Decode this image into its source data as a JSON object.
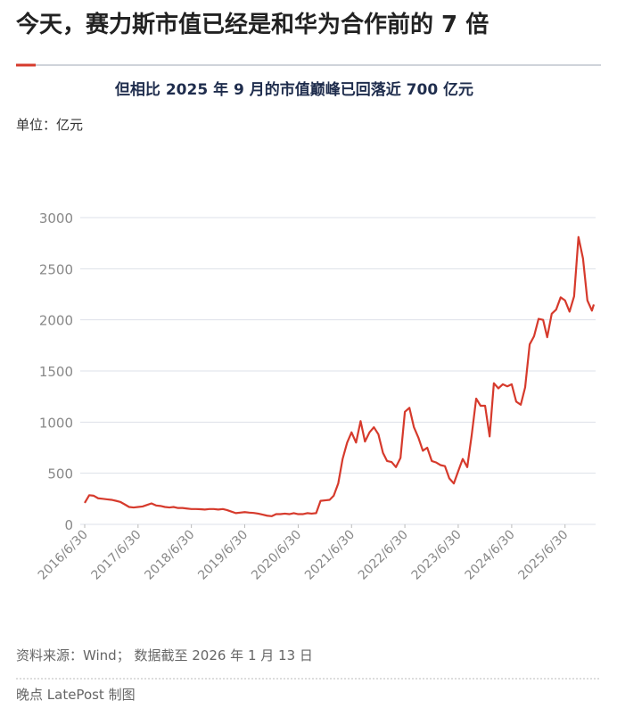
{
  "chart_data": {
    "type": "line",
    "title": "今天，赛力斯市值已经是和华为合作前的 7 倍",
    "subtitle": "但相比 2025 年 9 月的市值巅峰已回落近 700 亿元",
    "unit_label": "单位：亿元",
    "source": "资料来源：Wind； 数据截至 2026 年 1 月 13 日",
    "credit": "晚点 LatePost 制图",
    "color": "#d63a2c",
    "grid": true,
    "ylim": [
      0,
      3000
    ],
    "yticks": [
      0,
      500,
      1000,
      1500,
      2000,
      2500,
      3000
    ],
    "xlim": [
      "2016/6/30",
      "2026/1/13"
    ],
    "xticks": [
      "2016/6/30",
      "2017/6/30",
      "2018/6/30",
      "2019/6/30",
      "2020/6/30",
      "2021/6/30",
      "2022/6/30",
      "2023/6/30",
      "2024/6/30",
      "2025/6/30"
    ],
    "x": [
      "2016/6/30",
      "2016/7/31",
      "2016/8/31",
      "2016/9/30",
      "2016/10/31",
      "2016/11/30",
      "2016/12/31",
      "2017/1/31",
      "2017/2/28",
      "2017/3/31",
      "2017/4/30",
      "2017/5/31",
      "2017/6/30",
      "2017/7/31",
      "2017/8/31",
      "2017/9/30",
      "2017/10/31",
      "2017/11/30",
      "2017/12/31",
      "2018/1/31",
      "2018/2/28",
      "2018/3/31",
      "2018/4/30",
      "2018/5/31",
      "2018/6/30",
      "2018/7/31",
      "2018/8/31",
      "2018/9/30",
      "2018/10/31",
      "2018/11/30",
      "2018/12/31",
      "2019/1/31",
      "2019/2/28",
      "2019/3/31",
      "2019/4/30",
      "2019/5/31",
      "2019/6/30",
      "2019/7/31",
      "2019/8/31",
      "2019/9/30",
      "2019/10/31",
      "2019/11/30",
      "2019/12/31",
      "2020/1/31",
      "2020/2/29",
      "2020/3/31",
      "2020/4/30",
      "2020/5/31",
      "2020/6/30",
      "2020/7/31",
      "2020/8/31",
      "2020/9/30",
      "2020/10/31",
      "2020/11/30",
      "2020/12/31",
      "2021/1/31",
      "2021/2/28",
      "2021/3/31",
      "2021/4/30",
      "2021/5/31",
      "2021/6/30",
      "2021/7/31",
      "2021/8/31",
      "2021/9/30",
      "2021/10/31",
      "2021/11/30",
      "2021/12/31",
      "2022/1/31",
      "2022/2/28",
      "2022/3/31",
      "2022/4/30",
      "2022/5/31",
      "2022/6/30",
      "2022/7/31",
      "2022/8/31",
      "2022/9/30",
      "2022/10/31",
      "2022/11/30",
      "2022/12/31",
      "2023/1/31",
      "2023/2/28",
      "2023/3/31",
      "2023/4/30",
      "2023/5/31",
      "2023/6/30",
      "2023/7/31",
      "2023/8/31",
      "2023/9/30",
      "2023/10/31",
      "2023/11/30",
      "2023/12/31",
      "2024/1/31",
      "2024/2/29",
      "2024/3/31",
      "2024/4/30",
      "2024/5/31",
      "2024/6/30",
      "2024/7/31",
      "2024/8/31",
      "2024/9/30",
      "2024/10/31",
      "2024/11/30",
      "2024/12/31",
      "2025/1/31",
      "2025/2/28",
      "2025/3/31",
      "2025/4/30",
      "2025/5/31",
      "2025/6/30",
      "2025/7/31",
      "2025/8/31",
      "2025/9/30",
      "2025/10/31",
      "2025/11/30",
      "2025/12/31",
      "2026/1/13"
    ],
    "values": [
      210,
      285,
      280,
      255,
      250,
      245,
      240,
      230,
      220,
      195,
      170,
      165,
      170,
      175,
      190,
      205,
      185,
      180,
      170,
      165,
      170,
      160,
      160,
      155,
      150,
      150,
      148,
      145,
      150,
      150,
      145,
      150,
      140,
      125,
      110,
      115,
      120,
      115,
      112,
      105,
      95,
      85,
      80,
      100,
      100,
      105,
      100,
      110,
      100,
      100,
      110,
      105,
      110,
      230,
      235,
      240,
      280,
      400,
      640,
      800,
      900,
      800,
      1010,
      810,
      900,
      950,
      880,
      700,
      620,
      610,
      560,
      650,
      1100,
      1140,
      950,
      850,
      720,
      750,
      620,
      605,
      580,
      570,
      450,
      400,
      520,
      640,
      560,
      870,
      1230,
      1160,
      1160,
      860,
      1380,
      1330,
      1370,
      1350,
      1370,
      1200,
      1170,
      1340,
      1760,
      1840,
      2010,
      2000,
      1830,
      2060,
      2100,
      2220,
      2190,
      2080,
      2230,
      2810,
      2600,
      2190,
      2090,
      2150
    ]
  }
}
